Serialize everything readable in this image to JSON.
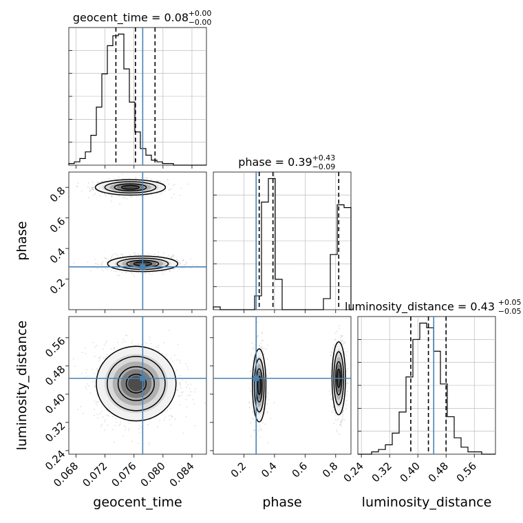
{
  "chart_data": {
    "type": "corner",
    "parameters": [
      "geocent_time",
      "phase",
      "luminosity_distance"
    ],
    "truths": {
      "geocent_time": 0.0772,
      "phase": 0.28,
      "luminosity_distance": 0.445
    },
    "diagonal": [
      {
        "param": "geocent_time",
        "title": {
          "text": "geocent_time = 0.08",
          "sup": "+0.00",
          "sub": "−0.00"
        },
        "xlim": [
          0.067,
          0.086
        ],
        "quantiles": [
          0.0735,
          0.0762,
          0.0789
        ],
        "bin_width": 0.00076,
        "bins_start": 0.067,
        "counts": [
          1,
          2,
          4,
          8,
          18,
          35,
          55,
          72,
          78,
          79,
          58,
          38,
          20,
          10,
          6,
          3,
          2,
          1,
          1,
          0,
          0,
          0,
          0,
          0,
          0
        ]
      },
      {
        "param": "phase",
        "title": {
          "text": "phase = 0.39",
          "sup": "+0.43",
          "sub": "−0.09"
        },
        "xlim": [
          0.0,
          0.9
        ],
        "quantiles": [
          0.3,
          0.39,
          0.82
        ],
        "bin_width": 0.045,
        "bins_start": 0.0,
        "counts": [
          2,
          0,
          0,
          0,
          0,
          0,
          10,
          78,
          95,
          22,
          0,
          0,
          0,
          0,
          0,
          0,
          8,
          40,
          76,
          74
        ]
      },
      {
        "param": "luminosity_distance",
        "title": {
          "text": "luminosity_distance = 0.43",
          "sup": "+0.05",
          "sub": "−0.05"
        },
        "xlim": [
          0.23,
          0.62
        ],
        "quantiles": [
          0.38,
          0.43,
          0.48
        ],
        "bin_width": 0.0195,
        "bins_start": 0.23,
        "counts": [
          0,
          0,
          1,
          2,
          4,
          9,
          18,
          33,
          49,
          56,
          54,
          44,
          30,
          16,
          7,
          3,
          1,
          1,
          0,
          0
        ]
      }
    ],
    "ticks": {
      "geocent_time": [
        0.068,
        0.072,
        0.076,
        0.08,
        0.084
      ],
      "phase_y": [
        0.2,
        0.4,
        0.6,
        0.8
      ],
      "phase_x": [
        0.2,
        0.4,
        0.6,
        0.8
      ],
      "luminosity_distance_y": [
        0.24,
        0.32,
        0.4,
        0.48,
        0.56
      ],
      "luminosity_distance_x": [
        0.24,
        0.32,
        0.4,
        0.48,
        0.56
      ]
    },
    "tick_labels": {
      "geocent_time": [
        "0.068",
        "0.072",
        "0.076",
        "0.080",
        "0.084"
      ],
      "phase": [
        "0.2",
        "0.4",
        "0.6",
        "0.8"
      ],
      "luminosity_distance": [
        "0.24",
        "0.32",
        "0.40",
        "0.48",
        "0.56"
      ]
    },
    "axis_labels": {
      "geocent_time": "geocent_time",
      "phase": "phase",
      "luminosity_distance": "luminosity_distance"
    },
    "modes": {
      "geocent_time_vs_phase": [
        {
          "cx": 0.0755,
          "cy": 0.8,
          "sx": 0.0022,
          "sy": 0.023
        },
        {
          "cx": 0.0772,
          "cy": 0.3,
          "sx": 0.0022,
          "sy": 0.023
        }
      ],
      "geocent_time_vs_luminosity_distance": [
        {
          "cx": 0.0763,
          "cy": 0.43,
          "sx": 0.0025,
          "sy": 0.048
        }
      ],
      "phase_vs_luminosity_distance": [
        {
          "cx": 0.3,
          "cy": 0.425,
          "sx": 0.02,
          "sy": 0.047
        },
        {
          "cx": 0.82,
          "cy": 0.445,
          "sx": 0.02,
          "sy": 0.047
        }
      ]
    },
    "colors": {
      "truth": "#4682b4",
      "hist": "#000000",
      "grid": "#b0b0b0",
      "point": "#000000"
    },
    "grid": true
  }
}
